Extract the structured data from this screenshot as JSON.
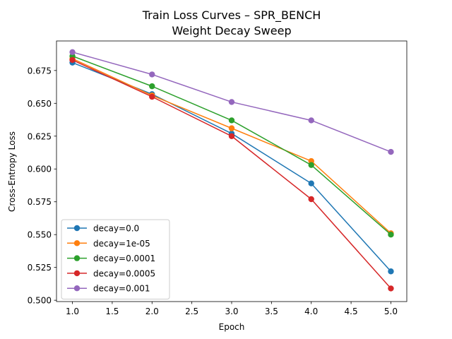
{
  "chart_data": {
    "type": "line",
    "title": "Train Loss Curves – SPR_BENCH",
    "subtitle": "Weight Decay Sweep",
    "xlabel": "Epoch",
    "ylabel": "Cross-Entropy Loss",
    "xlim": [
      0.8,
      5.2
    ],
    "ylim": [
      0.499,
      0.6975
    ],
    "xticks": [
      1.0,
      1.5,
      2.0,
      2.5,
      3.0,
      3.5,
      4.0,
      4.5,
      5.0
    ],
    "xtick_labels": [
      "1.0",
      "1.5",
      "2.0",
      "2.5",
      "3.0",
      "3.5",
      "4.0",
      "4.5",
      "5.0"
    ],
    "yticks": [
      0.5,
      0.525,
      0.55,
      0.575,
      0.6,
      0.625,
      0.65,
      0.675
    ],
    "ytick_labels": [
      "0.500",
      "0.525",
      "0.550",
      "0.575",
      "0.600",
      "0.625",
      "0.650",
      "0.675"
    ],
    "grid": false,
    "legend_position": "lower-left",
    "x": [
      1,
      2,
      3,
      4,
      5
    ],
    "series": [
      {
        "name": "decay=0.0",
        "color": "#1f77b4",
        "values": [
          0.681,
          0.657,
          0.627,
          0.589,
          0.522
        ]
      },
      {
        "name": "decay=1e-05",
        "color": "#ff7f0e",
        "values": [
          0.684,
          0.656,
          0.631,
          0.606,
          0.551
        ]
      },
      {
        "name": "decay=0.0001",
        "color": "#2ca02c",
        "values": [
          0.686,
          0.663,
          0.637,
          0.603,
          0.55
        ]
      },
      {
        "name": "decay=0.0005",
        "color": "#d62728",
        "values": [
          0.683,
          0.655,
          0.625,
          0.577,
          0.509
        ]
      },
      {
        "name": "decay=0.001",
        "color": "#9467bd",
        "values": [
          0.689,
          0.672,
          0.651,
          0.637,
          0.613
        ]
      }
    ]
  }
}
